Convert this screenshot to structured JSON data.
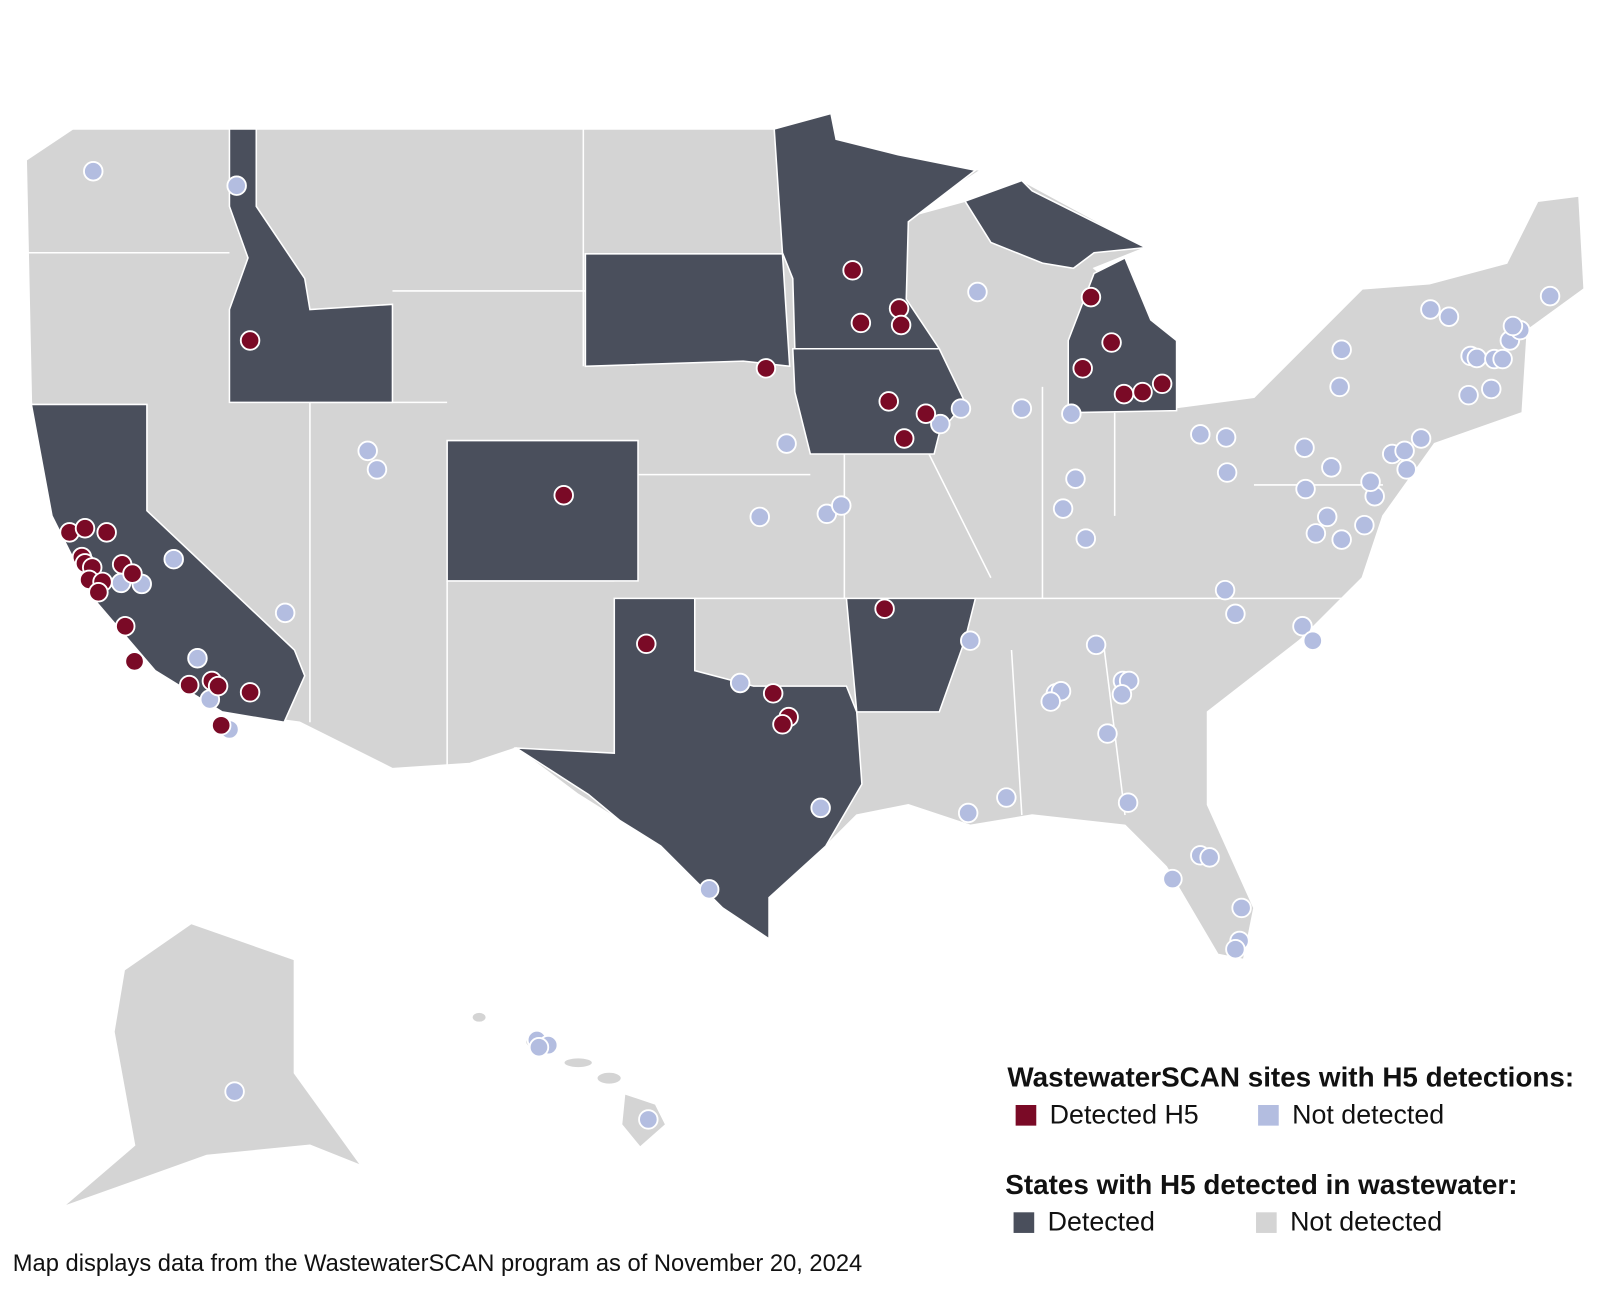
{
  "legend_sites": {
    "title": "WastewaterSCAN sites with H5 detections:",
    "items": [
      "Detected H5",
      "Not detected"
    ]
  },
  "legend_states": {
    "title": "States with H5 detected in wastewater:",
    "items": [
      "Detected",
      "Not detected"
    ]
  },
  "caption": "Map displays data from the WastewaterSCAN program as of November 20, 2024"
}
